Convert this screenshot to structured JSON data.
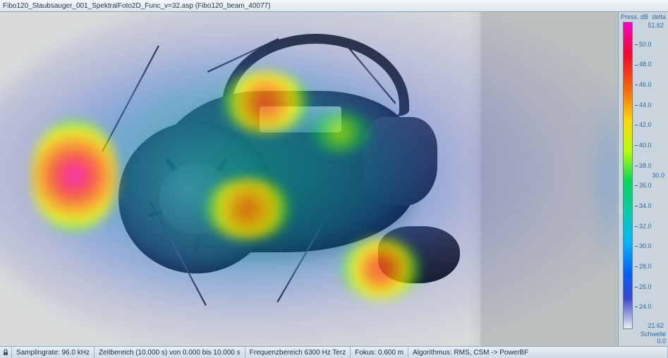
{
  "title": "Fibo120_Staubsauger_001_SpektralFoto2D_Func_v=32.asp (Fibo120_beam_40077)",
  "scale": {
    "header_left": "Press. dB",
    "header_right": "delta",
    "max": "51.62",
    "min": "21.62",
    "ticks": [
      "50.0",
      "48.0",
      "46.0",
      "44.0",
      "42.0",
      "40.0",
      "38.0",
      "36.0",
      "34.0",
      "32.0",
      "30.0",
      "28.0",
      "26.0",
      "24.0"
    ],
    "delta_value": "30.0",
    "delta_label": "Schwelle",
    "delta_footer": "0.0",
    "gradient_stops": [
      "#ff00c8",
      "#ff0033",
      "#ff6a00",
      "#ffd500",
      "#b8ff00",
      "#00d85a",
      "#00cfa8",
      "#00b4ff",
      "#0060ff",
      "#3a44d0",
      "#e9edf1"
    ]
  },
  "status": {
    "lock_icon": "lock-icon",
    "sampling": "Samplingrate: 96.0 kHz",
    "zeit": "Zeitbereich (10.000 s) von 0.000 bis 10.000 s",
    "freq": "Frequenzbereich 6300 Hz Terz",
    "fokus": "Fokus: 0.600 m",
    "algo": "Algorithmus: RMS, CSM -> PowerBF"
  },
  "heatmap": {
    "type": "heatmap",
    "unit": "dB",
    "range": [
      21.62,
      51.62
    ],
    "background_color": "#d9dcdb",
    "blend_opacity": 0.78,
    "hotspots": [
      {
        "cx_pct": 12,
        "cy_pct": 49,
        "rx_pct": 7,
        "ry_pct": 17,
        "peak_db": 51.6,
        "colors": [
          "#ff00c8",
          "#ff2d2d",
          "#ffab00",
          "#e9ff00",
          "#00dc50"
        ]
      },
      {
        "cx_pct": 43,
        "cy_pct": 27,
        "rx_pct": 7,
        "ry_pct": 9,
        "peak_db": 47.0,
        "colors": [
          "#ff3a1f",
          "#ffab00",
          "#f4ff00",
          "#00d250"
        ]
      },
      {
        "cx_pct": 40,
        "cy_pct": 59,
        "rx_pct": 7,
        "ry_pct": 9,
        "peak_db": 45.0,
        "colors": [
          "#ff6a00",
          "#ffcd00",
          "#e9ff00",
          "#00d250"
        ]
      },
      {
        "cx_pct": 61,
        "cy_pct": 77,
        "rx_pct": 6.5,
        "ry_pct": 9,
        "peak_db": 47.5,
        "colors": [
          "#ff2d2d",
          "#ff8a00",
          "#f4ff00",
          "#00d250"
        ]
      },
      {
        "cx_pct": 55,
        "cy_pct": 36,
        "rx_pct": 5,
        "ry_pct": 6,
        "peak_db": 41.0,
        "colors": [
          "#b8ff00",
          "#00d250"
        ]
      }
    ],
    "field_layers": [
      {
        "shape": "ellipse",
        "cx_pct": 42,
        "cy_pct": 48,
        "extent_pct": 72,
        "color": "#2130c4",
        "alpha": 0.55
      },
      {
        "shape": "ellipse",
        "cx_pct": 48,
        "cy_pct": 50,
        "extent_pct": 45,
        "color": "#0078ff",
        "alpha": 0.55
      },
      {
        "shape": "ellipse",
        "cx_pct": 50,
        "cy_pct": 50,
        "extent_pct": 40,
        "color": "#00c85a",
        "alpha": 0.55
      }
    ]
  }
}
